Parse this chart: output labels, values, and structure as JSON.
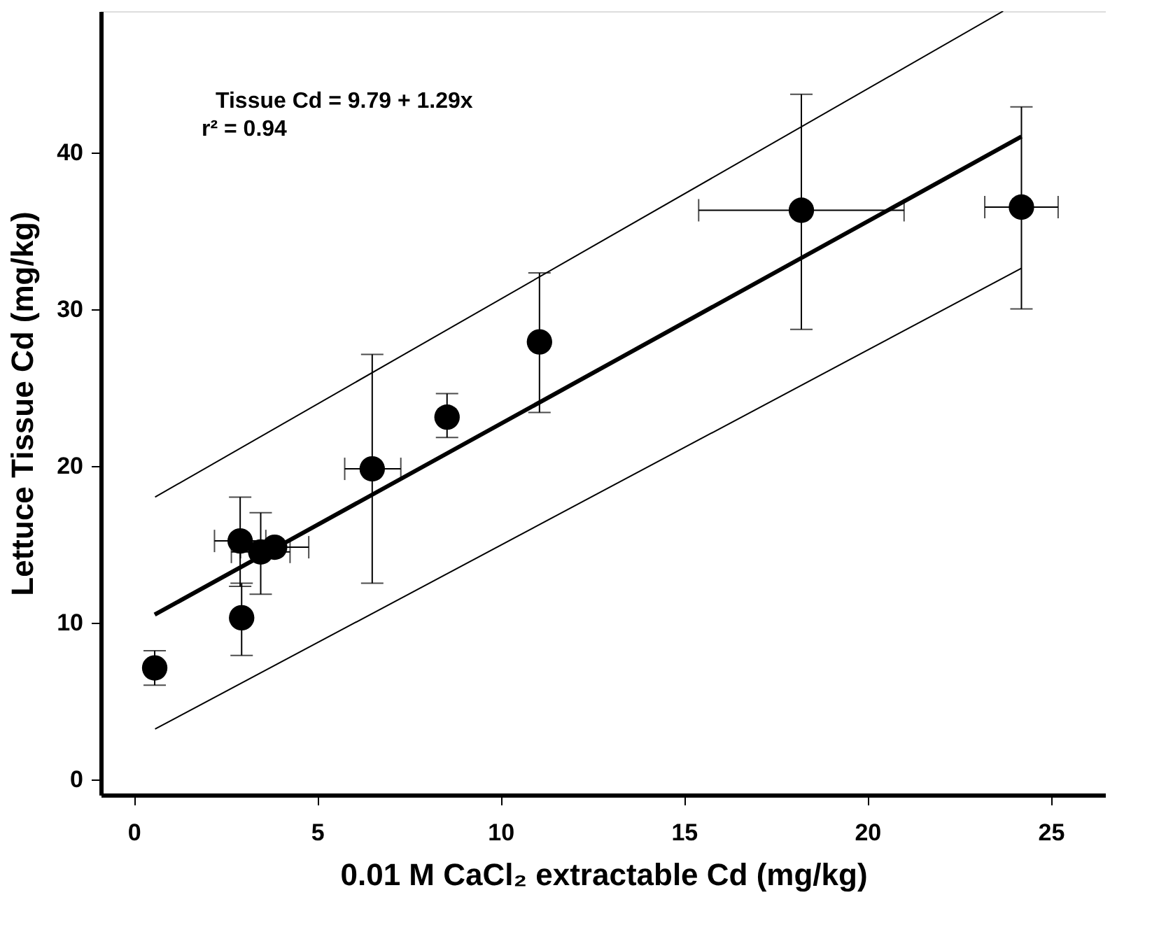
{
  "chart_data": {
    "type": "scatter",
    "xlabel": "0.01 M CaCl₂ extractable Cd (mg/kg)",
    "ylabel": "Lettuce Tissue Cd (mg/kg)",
    "annotations": [
      "Tissue Cd = 9.79 + 1.29x",
      "r² = 0.94"
    ],
    "xlim": [
      -0.9,
      26.5
    ],
    "ylim": [
      -1,
      49
    ],
    "xticks": [
      0,
      5,
      10,
      15,
      20,
      25
    ],
    "yticks": [
      0,
      10,
      20,
      30,
      40
    ],
    "grid": false,
    "series": [
      {
        "marker": "circle",
        "color": "#000000",
        "x": [
          0.57,
          2.9,
          2.94,
          3.46,
          3.84,
          6.5,
          8.54,
          11.06,
          18.2,
          24.2
        ],
        "values": [
          7.1,
          15.2,
          10.3,
          14.5,
          14.8,
          19.8,
          23.1,
          27.9,
          36.3,
          36.5
        ],
        "errors": [
          [
            6.0,
            8.2
          ],
          [
            12.3,
            18.0
          ],
          [
            7.9,
            12.5
          ],
          [
            11.8,
            17.0
          ],
          null,
          [
            12.5,
            27.1
          ],
          [
            21.8,
            24.6
          ],
          [
            23.4,
            32.3
          ],
          [
            28.7,
            43.7
          ],
          [
            30.0,
            42.9
          ]
        ],
        "xerrors": [
          null,
          [
            2.2,
            3.6
          ],
          null,
          [
            2.66,
            4.26
          ],
          0.93,
          [
            5.75,
            7.28
          ],
          null,
          null,
          [
            15.4,
            21.0
          ],
          [
            23.2,
            25.2
          ]
        ]
      },
      {
        "type": "line",
        "marker": "none",
        "color": "#000000",
        "line_style": "solid",
        "x": [
          0.57,
          24.2
        ],
        "values": [
          10.5,
          41.0
        ]
      },
      {
        "type": "line",
        "marker": "none",
        "color": "#000000",
        "line_style": "solid",
        "x": [
          0.58,
          23.7
        ],
        "values": [
          18.0,
          49.0
        ]
      },
      {
        "type": "line",
        "marker": "none",
        "color": "#000000",
        "line_style": "solid",
        "x": [
          0.58,
          24.2
        ],
        "values": [
          3.2,
          32.6
        ]
      }
    ]
  }
}
